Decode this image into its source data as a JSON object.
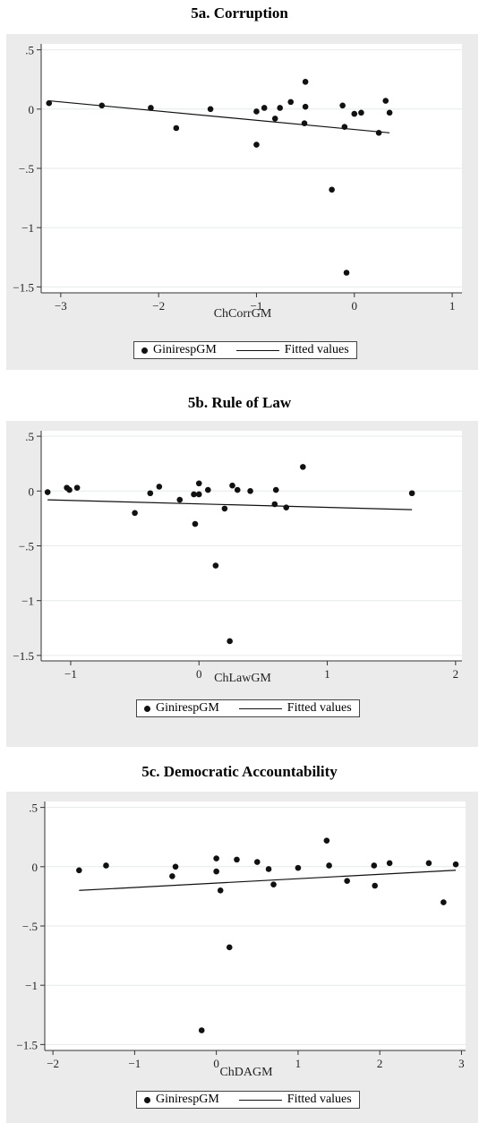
{
  "chart_data": [
    {
      "type": "scatter",
      "title": "5a. Corruption",
      "xlabel": "ChCorrGM",
      "ylabel": "",
      "xlim": [
        -3.2,
        1.1
      ],
      "ylim": [
        -1.55,
        0.55
      ],
      "xticks": [
        -3,
        -2,
        -1,
        0,
        1
      ],
      "xtick_labels": [
        "−3",
        "−2",
        "−1",
        "0",
        "1"
      ],
      "yticks": [
        0.5,
        0,
        -0.5,
        -1,
        -1.5
      ],
      "ytick_labels": [
        ".5",
        "0",
        "−.5",
        "−1",
        "−1.5"
      ],
      "grid": true,
      "legend_position": "bottom",
      "series": [
        {
          "name": "GinirespGM",
          "kind": "scatter",
          "points": [
            [
              -3.12,
              0.05
            ],
            [
              -2.58,
              0.03
            ],
            [
              -2.08,
              0.01
            ],
            [
              -1.82,
              -0.16
            ],
            [
              -1.47,
              0.0
            ],
            [
              -1.0,
              -0.02
            ],
            [
              -1.0,
              -0.3
            ],
            [
              -0.92,
              0.01
            ],
            [
              -0.81,
              -0.08
            ],
            [
              -0.76,
              0.01
            ],
            [
              -0.65,
              0.06
            ],
            [
              -0.5,
              0.23
            ],
            [
              -0.5,
              0.02
            ],
            [
              -0.51,
              -0.12
            ],
            [
              -0.23,
              -0.68
            ],
            [
              -0.12,
              0.03
            ],
            [
              -0.1,
              -0.15
            ],
            [
              -0.08,
              -1.38
            ],
            [
              0.0,
              -0.04
            ],
            [
              0.07,
              -0.03
            ],
            [
              0.25,
              -0.2
            ],
            [
              0.32,
              0.07
            ],
            [
              0.36,
              -0.03
            ]
          ]
        },
        {
          "name": "Fitted values",
          "kind": "line",
          "points": [
            [
              -3.12,
              0.07
            ],
            [
              0.36,
              -0.2
            ]
          ]
        }
      ]
    },
    {
      "type": "scatter",
      "title": "5b. Rule of Law",
      "xlabel": "ChLawGM",
      "ylabel": "",
      "xlim": [
        -1.23,
        2.05
      ],
      "ylim": [
        -1.55,
        0.55
      ],
      "xticks": [
        -1,
        0,
        1,
        2
      ],
      "xtick_labels": [
        "−1",
        "0",
        "1",
        "2"
      ],
      "yticks": [
        0.5,
        0,
        -0.5,
        -1,
        -1.5
      ],
      "ytick_labels": [
        ".5",
        "0",
        "−.5",
        "−1",
        "−1.5"
      ],
      "grid": true,
      "legend_position": "bottom",
      "series": [
        {
          "name": "GinirespGM",
          "kind": "scatter",
          "points": [
            [
              -1.18,
              -0.01
            ],
            [
              -1.03,
              0.03
            ],
            [
              -1.01,
              0.01
            ],
            [
              -0.95,
              0.03
            ],
            [
              -0.5,
              -0.2
            ],
            [
              -0.38,
              -0.02
            ],
            [
              -0.31,
              0.04
            ],
            [
              -0.15,
              -0.08
            ],
            [
              -0.04,
              -0.03
            ],
            [
              -0.03,
              -0.3
            ],
            [
              0.0,
              0.07
            ],
            [
              0.0,
              -0.03
            ],
            [
              0.07,
              0.01
            ],
            [
              0.13,
              -0.68
            ],
            [
              0.2,
              -0.16
            ],
            [
              0.24,
              -1.37
            ],
            [
              0.26,
              0.05
            ],
            [
              0.3,
              0.01
            ],
            [
              0.4,
              0.0
            ],
            [
              0.59,
              -0.12
            ],
            [
              0.6,
              0.01
            ],
            [
              0.68,
              -0.15
            ],
            [
              0.81,
              0.22
            ],
            [
              1.66,
              -0.02
            ]
          ]
        },
        {
          "name": "Fitted values",
          "kind": "line",
          "points": [
            [
              -1.18,
              -0.08
            ],
            [
              1.66,
              -0.17
            ]
          ]
        }
      ]
    },
    {
      "type": "scatter",
      "title": "5c. Democratic Accountability",
      "xlabel": "ChDAGM",
      "ylabel": "",
      "xlim": [
        -2.1,
        3.05
      ],
      "ylim": [
        -1.55,
        0.55
      ],
      "xticks": [
        -2,
        -1,
        0,
        1,
        2,
        3
      ],
      "xtick_labels": [
        "−2",
        "−1",
        "0",
        "1",
        "2",
        "3"
      ],
      "yticks": [
        0.5,
        0,
        -0.5,
        -1,
        -1.5
      ],
      "ytick_labels": [
        ".5",
        "0",
        "−.5",
        "−1",
        "−1.5"
      ],
      "grid": true,
      "legend_position": "bottom",
      "series": [
        {
          "name": "GinirespGM",
          "kind": "scatter",
          "points": [
            [
              -1.68,
              -0.03
            ],
            [
              -1.35,
              0.01
            ],
            [
              -0.54,
              -0.08
            ],
            [
              -0.5,
              0.0
            ],
            [
              -0.18,
              -1.38
            ],
            [
              0.0,
              0.07
            ],
            [
              0.0,
              -0.04
            ],
            [
              0.05,
              -0.2
            ],
            [
              0.16,
              -0.68
            ],
            [
              0.25,
              0.06
            ],
            [
              0.5,
              0.04
            ],
            [
              0.64,
              -0.02
            ],
            [
              0.7,
              -0.15
            ],
            [
              1.0,
              -0.01
            ],
            [
              1.35,
              0.22
            ],
            [
              1.38,
              0.01
            ],
            [
              1.6,
              -0.12
            ],
            [
              1.93,
              0.01
            ],
            [
              1.94,
              -0.16
            ],
            [
              2.12,
              0.03
            ],
            [
              2.6,
              0.03
            ],
            [
              2.78,
              -0.3
            ],
            [
              2.93,
              0.02
            ]
          ]
        },
        {
          "name": "Fitted values",
          "kind": "line",
          "points": [
            [
              -1.68,
              -0.2
            ],
            [
              2.93,
              -0.03
            ]
          ]
        }
      ]
    }
  ]
}
